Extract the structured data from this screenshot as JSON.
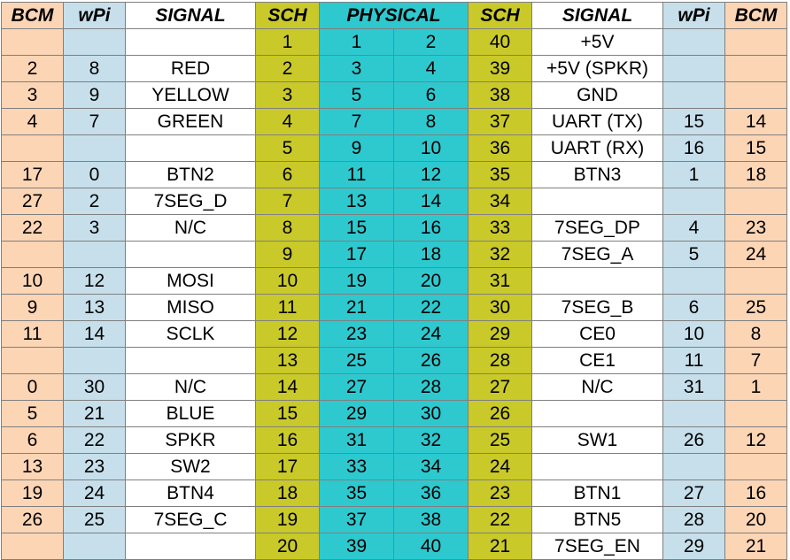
{
  "headers": {
    "bcm_left": "BCM",
    "wpi_left": "wPi",
    "signal_left": "SIGNAL",
    "sch_left": "SCH",
    "physical": "PHYSICAL",
    "sch_right": "SCH",
    "signal_right": "SIGNAL",
    "wpi_right": "wPi",
    "bcm_right": "BCM"
  },
  "rows": [
    {
      "bcm_l": "",
      "wpi_l": "",
      "sig_l": "",
      "sch_l": "1",
      "phy_l": "1",
      "phy_r": "2",
      "sch_r": "40",
      "sig_r": "+5V",
      "wpi_r": "",
      "bcm_r": ""
    },
    {
      "bcm_l": "2",
      "wpi_l": "8",
      "sig_l": "RED",
      "sch_l": "2",
      "phy_l": "3",
      "phy_r": "4",
      "sch_r": "39",
      "sig_r": "+5V (SPKR)",
      "wpi_r": "",
      "bcm_r": ""
    },
    {
      "bcm_l": "3",
      "wpi_l": "9",
      "sig_l": "YELLOW",
      "sch_l": "3",
      "phy_l": "5",
      "phy_r": "6",
      "sch_r": "38",
      "sig_r": "GND",
      "wpi_r": "",
      "bcm_r": ""
    },
    {
      "bcm_l": "4",
      "wpi_l": "7",
      "sig_l": "GREEN",
      "sch_l": "4",
      "phy_l": "7",
      "phy_r": "8",
      "sch_r": "37",
      "sig_r": "UART (TX)",
      "wpi_r": "15",
      "bcm_r": "14"
    },
    {
      "bcm_l": "",
      "wpi_l": "",
      "sig_l": "",
      "sch_l": "5",
      "phy_l": "9",
      "phy_r": "10",
      "sch_r": "36",
      "sig_r": "UART (RX)",
      "wpi_r": "16",
      "bcm_r": "15"
    },
    {
      "bcm_l": "17",
      "wpi_l": "0",
      "sig_l": "BTN2",
      "sch_l": "6",
      "phy_l": "11",
      "phy_r": "12",
      "sch_r": "35",
      "sig_r": "BTN3",
      "wpi_r": "1",
      "bcm_r": "18"
    },
    {
      "bcm_l": "27",
      "wpi_l": "2",
      "sig_l": "7SEG_D",
      "sch_l": "7",
      "phy_l": "13",
      "phy_r": "14",
      "sch_r": "34",
      "sig_r": "",
      "wpi_r": "",
      "bcm_r": ""
    },
    {
      "bcm_l": "22",
      "wpi_l": "3",
      "sig_l": "N/C",
      "sch_l": "8",
      "phy_l": "15",
      "phy_r": "16",
      "sch_r": "33",
      "sig_r": "7SEG_DP",
      "wpi_r": "4",
      "bcm_r": "23"
    },
    {
      "bcm_l": "",
      "wpi_l": "",
      "sig_l": "",
      "sch_l": "9",
      "phy_l": "17",
      "phy_r": "18",
      "sch_r": "32",
      "sig_r": "7SEG_A",
      "wpi_r": "5",
      "bcm_r": "24"
    },
    {
      "bcm_l": "10",
      "wpi_l": "12",
      "sig_l": "MOSI",
      "sch_l": "10",
      "phy_l": "19",
      "phy_r": "20",
      "sch_r": "31",
      "sig_r": "",
      "wpi_r": "",
      "bcm_r": ""
    },
    {
      "bcm_l": "9",
      "wpi_l": "13",
      "sig_l": "MISO",
      "sch_l": "11",
      "phy_l": "21",
      "phy_r": "22",
      "sch_r": "30",
      "sig_r": "7SEG_B",
      "wpi_r": "6",
      "bcm_r": "25"
    },
    {
      "bcm_l": "11",
      "wpi_l": "14",
      "sig_l": "SCLK",
      "sch_l": "12",
      "phy_l": "23",
      "phy_r": "24",
      "sch_r": "29",
      "sig_r": "CE0",
      "wpi_r": "10",
      "bcm_r": "8"
    },
    {
      "bcm_l": "",
      "wpi_l": "",
      "sig_l": "",
      "sch_l": "13",
      "phy_l": "25",
      "phy_r": "26",
      "sch_r": "28",
      "sig_r": "CE1",
      "wpi_r": "11",
      "bcm_r": "7"
    },
    {
      "bcm_l": "0",
      "wpi_l": "30",
      "sig_l": "N/C",
      "sch_l": "14",
      "phy_l": "27",
      "phy_r": "28",
      "sch_r": "27",
      "sig_r": "N/C",
      "wpi_r": "31",
      "bcm_r": "1"
    },
    {
      "bcm_l": "5",
      "wpi_l": "21",
      "sig_l": "BLUE",
      "sch_l": "15",
      "phy_l": "29",
      "phy_r": "30",
      "sch_r": "26",
      "sig_r": "",
      "wpi_r": "",
      "bcm_r": ""
    },
    {
      "bcm_l": "6",
      "wpi_l": "22",
      "sig_l": "SPKR",
      "sch_l": "16",
      "phy_l": "31",
      "phy_r": "32",
      "sch_r": "25",
      "sig_r": "SW1",
      "wpi_r": "26",
      "bcm_r": "12"
    },
    {
      "bcm_l": "13",
      "wpi_l": "23",
      "sig_l": "SW2",
      "sch_l": "17",
      "phy_l": "33",
      "phy_r": "34",
      "sch_r": "24",
      "sig_r": "",
      "wpi_r": "",
      "bcm_r": ""
    },
    {
      "bcm_l": "19",
      "wpi_l": "24",
      "sig_l": "BTN4",
      "sch_l": "18",
      "phy_l": "35",
      "phy_r": "36",
      "sch_r": "23",
      "sig_r": "BTN1",
      "wpi_r": "27",
      "bcm_r": "16"
    },
    {
      "bcm_l": "26",
      "wpi_l": "25",
      "sig_l": "7SEG_C",
      "sch_l": "19",
      "phy_l": "37",
      "phy_r": "38",
      "sch_r": "22",
      "sig_r": "BTN5",
      "wpi_r": "28",
      "bcm_r": "20"
    },
    {
      "bcm_l": "",
      "wpi_l": "",
      "sig_l": "",
      "sch_l": "20",
      "phy_l": "39",
      "phy_r": "40",
      "sch_r": "21",
      "sig_r": "7SEG_EN",
      "wpi_r": "29",
      "bcm_r": "21"
    }
  ],
  "colors": {
    "bcm": "#fcd5b5",
    "wpi": "#c6dfeb",
    "signal": "#ffffff",
    "sch": "#c9c92a",
    "physical": "#2ec9cf",
    "grid": "#7f7f7f"
  }
}
